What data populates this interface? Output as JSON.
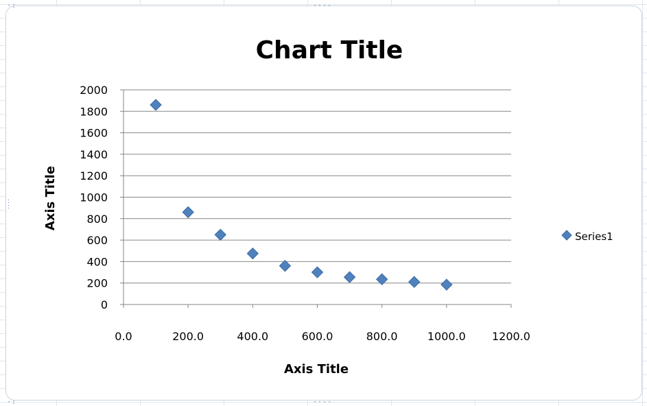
{
  "chart_data": {
    "type": "scatter",
    "title": "Chart Title",
    "xlabel": "Axis Title",
    "ylabel": "Axis Title",
    "xlim": [
      0,
      1200
    ],
    "ylim": [
      0,
      2000
    ],
    "x_ticks": [
      "0.0",
      "200.0",
      "400.0",
      "600.0",
      "800.0",
      "1000.0",
      "1200.0"
    ],
    "y_ticks": [
      "0",
      "200",
      "400",
      "600",
      "800",
      "1000",
      "1200",
      "1400",
      "1600",
      "1800",
      "2000"
    ],
    "grid": "horizontal",
    "legend_position": "right",
    "series": [
      {
        "name": "Series1",
        "color": "#4f81bd",
        "marker": "diamond",
        "x": [
          100,
          200,
          300,
          400,
          500,
          600,
          700,
          800,
          900,
          1000
        ],
        "y": [
          1860,
          860,
          650,
          475,
          360,
          300,
          255,
          235,
          210,
          185
        ]
      }
    ]
  }
}
